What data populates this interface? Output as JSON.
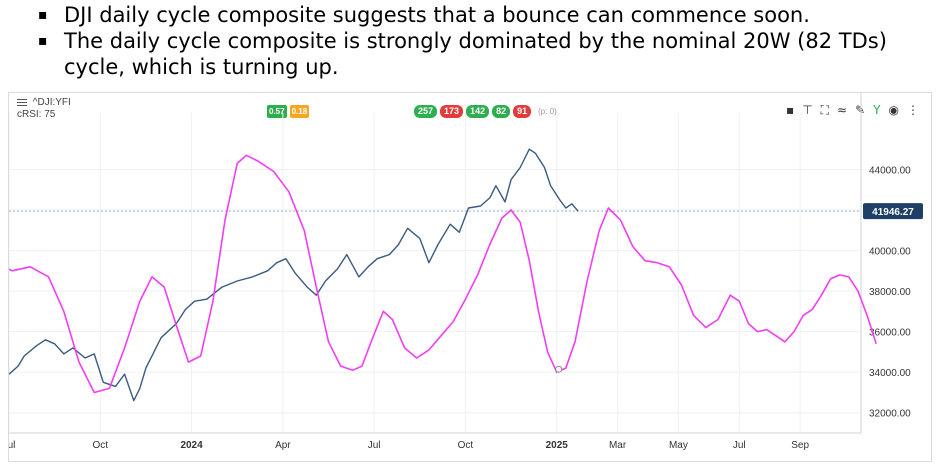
{
  "bullets": [
    {
      "marker": "▪",
      "text": "DJI daily cycle composite suggests that a bounce can commence soon."
    },
    {
      "marker": "▪",
      "text": "The daily cycle composite is strongly dominated by the nominal 20W (82 TDs) cycle, which is turning up."
    }
  ],
  "toolbar": {
    "symbol": "^DJI:YFI",
    "indicator": "cRSI: 75",
    "small_pills": [
      {
        "label": "0.57",
        "color": "#2eae4f"
      },
      {
        "label": "0.18",
        "color": "#f5a623"
      }
    ],
    "pills": [
      {
        "label": "257",
        "color": "#2eae4f"
      },
      {
        "label": "173",
        "color": "#e23b3b"
      },
      {
        "label": "142",
        "color": "#2eae4f"
      },
      {
        "label": "82",
        "color": "#2eae4f"
      },
      {
        "label": "91",
        "color": "#e23b3b"
      }
    ],
    "pill_note": "(p: 0)",
    "tool_icons": [
      {
        "name": "save-icon",
        "glyph": "▪"
      },
      {
        "name": "pin-icon",
        "glyph": "⊤"
      },
      {
        "name": "fullscreen-icon",
        "glyph": "⛶"
      },
      {
        "name": "cycle-icon",
        "glyph": "≈"
      },
      {
        "name": "tools-icon",
        "glyph": "✎"
      },
      {
        "name": "antenna-icon",
        "glyph": "Y"
      },
      {
        "name": "eye-icon",
        "glyph": "◉"
      },
      {
        "name": "more-icon",
        "glyph": "⋮"
      }
    ]
  },
  "chart_data": {
    "type": "line",
    "ylim": [
      31000,
      45800
    ],
    "y_ticks": [
      "44000.00",
      "42000.00",
      "40000.00",
      "38000.00",
      "36000.00",
      "34000.00",
      "32000.00"
    ],
    "x_ticks": [
      {
        "label": "Jul",
        "t": 0.5,
        "bold": false
      },
      {
        "label": "Oct",
        "t": 3.5,
        "bold": false
      },
      {
        "label": "2024",
        "t": 6.5,
        "bold": true
      },
      {
        "label": "Apr",
        "t": 9.5,
        "bold": false
      },
      {
        "label": "Jul",
        "t": 12.5,
        "bold": false
      },
      {
        "label": "Oct",
        "t": 15.5,
        "bold": false
      },
      {
        "label": "2025",
        "t": 18.5,
        "bold": true
      },
      {
        "label": "Mar",
        "t": 20.5,
        "bold": false
      },
      {
        "label": "May",
        "t": 22.5,
        "bold": false
      },
      {
        "label": "Jul",
        "t": 24.5,
        "bold": false
      },
      {
        "label": "Sep",
        "t": 26.5,
        "bold": false
      }
    ],
    "t_range": [
      0.5,
      28.5
    ],
    "last_price": {
      "value": 41946.27,
      "label": "41946.27",
      "color": "#1e3f66"
    },
    "series": [
      {
        "color": "#3b5a7e",
        "points": [
          [
            0.5,
            33900
          ],
          [
            0.8,
            34300
          ],
          [
            1.0,
            34800
          ],
          [
            1.4,
            35300
          ],
          [
            1.7,
            35600
          ],
          [
            2.0,
            35400
          ],
          [
            2.3,
            34900
          ],
          [
            2.6,
            35200
          ],
          [
            3.0,
            34700
          ],
          [
            3.3,
            34900
          ],
          [
            3.6,
            33500
          ],
          [
            4.0,
            33300
          ],
          [
            4.3,
            33900
          ],
          [
            4.6,
            32600
          ],
          [
            4.8,
            33200
          ],
          [
            5.0,
            34200
          ],
          [
            5.5,
            35700
          ],
          [
            6.0,
            36400
          ],
          [
            6.3,
            37100
          ],
          [
            6.6,
            37500
          ],
          [
            7.0,
            37600
          ],
          [
            7.5,
            38200
          ],
          [
            8.0,
            38500
          ],
          [
            8.5,
            38700
          ],
          [
            9.0,
            39000
          ],
          [
            9.3,
            39400
          ],
          [
            9.6,
            39600
          ],
          [
            9.9,
            38900
          ],
          [
            10.3,
            38200
          ],
          [
            10.6,
            37800
          ],
          [
            10.9,
            38500
          ],
          [
            11.3,
            39100
          ],
          [
            11.6,
            39800
          ],
          [
            12.0,
            38700
          ],
          [
            12.3,
            39200
          ],
          [
            12.6,
            39600
          ],
          [
            13.0,
            39800
          ],
          [
            13.3,
            40300
          ],
          [
            13.6,
            41100
          ],
          [
            14.0,
            40600
          ],
          [
            14.3,
            39400
          ],
          [
            14.6,
            40300
          ],
          [
            15.0,
            41300
          ],
          [
            15.3,
            40900
          ],
          [
            15.6,
            42100
          ],
          [
            16.0,
            42200
          ],
          [
            16.3,
            42600
          ],
          [
            16.5,
            43200
          ],
          [
            16.8,
            42400
          ],
          [
            17.0,
            43500
          ],
          [
            17.3,
            44100
          ],
          [
            17.6,
            45000
          ],
          [
            17.8,
            44800
          ],
          [
            18.1,
            44100
          ],
          [
            18.3,
            43200
          ],
          [
            18.6,
            42500
          ],
          [
            18.8,
            42100
          ],
          [
            19.0,
            42300
          ],
          [
            19.2,
            41950
          ]
        ]
      },
      {
        "color": "#f23ef2",
        "points": [
          [
            0.0,
            39500
          ],
          [
            0.6,
            39000
          ],
          [
            1.2,
            39200
          ],
          [
            1.8,
            38700
          ],
          [
            2.3,
            37000
          ],
          [
            2.8,
            34500
          ],
          [
            3.3,
            33000
          ],
          [
            3.8,
            33200
          ],
          [
            4.3,
            35200
          ],
          [
            4.8,
            37500
          ],
          [
            5.2,
            38700
          ],
          [
            5.6,
            38200
          ],
          [
            6.0,
            36300
          ],
          [
            6.4,
            34500
          ],
          [
            6.8,
            34800
          ],
          [
            7.2,
            37500
          ],
          [
            7.6,
            41500
          ],
          [
            8.0,
            44300
          ],
          [
            8.3,
            44700
          ],
          [
            8.7,
            44400
          ],
          [
            9.2,
            43900
          ],
          [
            9.7,
            42900
          ],
          [
            10.2,
            41000
          ],
          [
            10.6,
            38200
          ],
          [
            11.0,
            35500
          ],
          [
            11.4,
            34300
          ],
          [
            11.8,
            34100
          ],
          [
            12.1,
            34300
          ],
          [
            12.4,
            35500
          ],
          [
            12.8,
            37000
          ],
          [
            13.1,
            36600
          ],
          [
            13.5,
            35200
          ],
          [
            13.9,
            34700
          ],
          [
            14.3,
            35100
          ],
          [
            14.7,
            35800
          ],
          [
            15.1,
            36500
          ],
          [
            15.5,
            37600
          ],
          [
            15.9,
            38800
          ],
          [
            16.3,
            40300
          ],
          [
            16.7,
            41600
          ],
          [
            17.0,
            42000
          ],
          [
            17.3,
            41400
          ],
          [
            17.6,
            39500
          ],
          [
            17.9,
            37000
          ],
          [
            18.2,
            35000
          ],
          [
            18.5,
            34000
          ],
          [
            18.8,
            34200
          ],
          [
            19.1,
            35500
          ],
          [
            19.5,
            38500
          ],
          [
            19.9,
            41000
          ],
          [
            20.2,
            42100
          ],
          [
            20.6,
            41500
          ],
          [
            21.0,
            40200
          ],
          [
            21.4,
            39500
          ],
          [
            21.8,
            39400
          ],
          [
            22.2,
            39200
          ],
          [
            22.6,
            38300
          ],
          [
            23.0,
            36800
          ],
          [
            23.4,
            36200
          ],
          [
            23.8,
            36600
          ],
          [
            24.2,
            37800
          ],
          [
            24.5,
            37500
          ],
          [
            24.8,
            36400
          ],
          [
            25.1,
            36000
          ],
          [
            25.4,
            36100
          ],
          [
            25.7,
            35800
          ],
          [
            26.0,
            35500
          ],
          [
            26.3,
            36000
          ],
          [
            26.6,
            36800
          ],
          [
            26.9,
            37100
          ],
          [
            27.2,
            37800
          ],
          [
            27.5,
            38600
          ],
          [
            27.8,
            38800
          ],
          [
            28.1,
            38700
          ],
          [
            28.4,
            38000
          ],
          [
            28.7,
            36800
          ],
          [
            29.0,
            35400
          ]
        ]
      }
    ]
  }
}
